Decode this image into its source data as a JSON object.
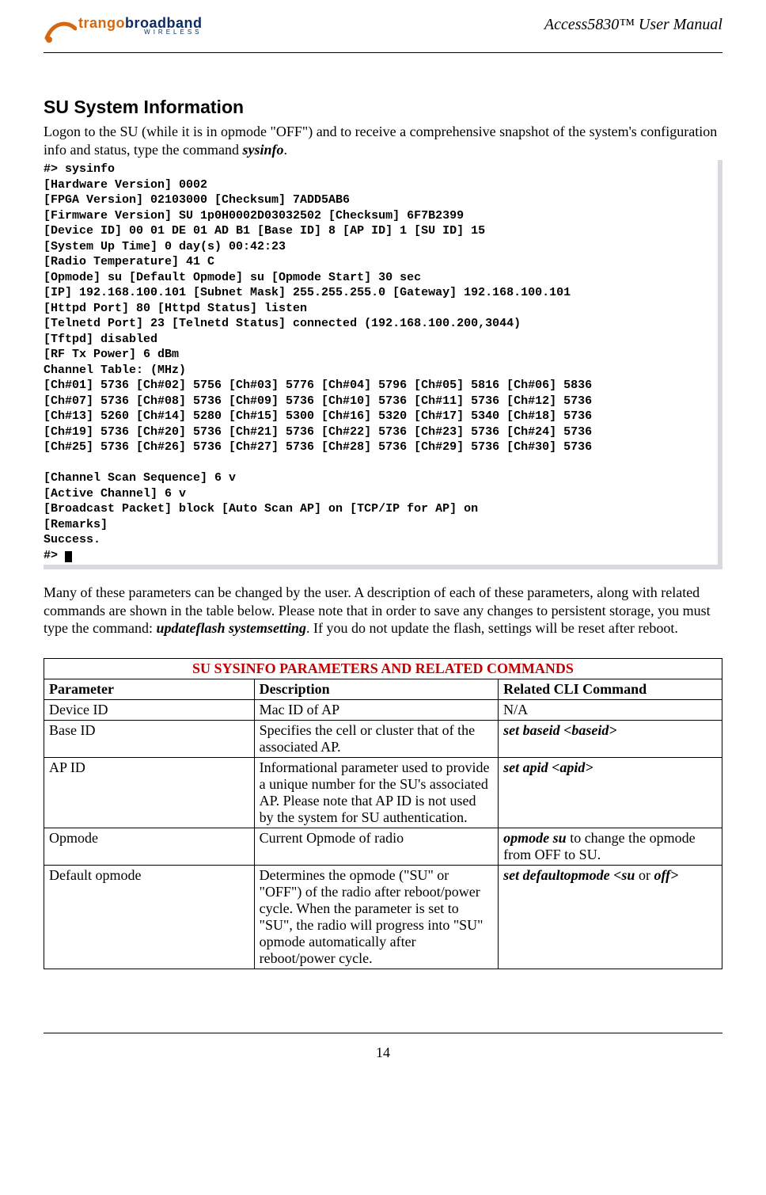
{
  "header": {
    "logo_trango": "trango",
    "logo_broadband": "broadband",
    "logo_sub": "WIRELESS",
    "doc_title": "Access5830™ User Manual"
  },
  "section": {
    "title": "SU System Information",
    "intro_a": "Logon to the SU (while it is in opmode \"OFF\")  and to receive a comprehensive snapshot of the system's configuration info and status, type the command ",
    "intro_cmd": "sysinfo",
    "intro_b": "."
  },
  "terminal_lines": [
    "#> sysinfo",
    "[Hardware Version] 0002",
    "[FPGA Version] 02103000 [Checksum] 7ADD5AB6",
    "[Firmware Version] SU 1p0H0002D03032502 [Checksum] 6F7B2399",
    "[Device ID] 00 01 DE 01 AD B1 [Base ID] 8 [AP ID] 1 [SU ID] 15",
    "[System Up Time] 0 day(s) 00:42:23",
    "[Radio Temperature] 41 C",
    "[Opmode] su [Default Opmode] su [Opmode Start] 30 sec",
    "[IP] 192.168.100.101 [Subnet Mask] 255.255.255.0 [Gateway] 192.168.100.101",
    "[Httpd Port] 80 [Httpd Status] listen",
    "[Telnetd Port] 23 [Telnetd Status] connected (192.168.100.200,3044)",
    "[Tftpd] disabled",
    "[RF Tx Power] 6 dBm",
    "Channel Table: (MHz)",
    "[Ch#01] 5736 [Ch#02] 5756 [Ch#03] 5776 [Ch#04] 5796 [Ch#05] 5816 [Ch#06] 5836",
    "[Ch#07] 5736 [Ch#08] 5736 [Ch#09] 5736 [Ch#10] 5736 [Ch#11] 5736 [Ch#12] 5736",
    "[Ch#13] 5260 [Ch#14] 5280 [Ch#15] 5300 [Ch#16] 5320 [Ch#17] 5340 [Ch#18] 5736",
    "[Ch#19] 5736 [Ch#20] 5736 [Ch#21] 5736 [Ch#22] 5736 [Ch#23] 5736 [Ch#24] 5736",
    "[Ch#25] 5736 [Ch#26] 5736 [Ch#27] 5736 [Ch#28] 5736 [Ch#29] 5736 [Ch#30] 5736",
    "",
    "[Channel Scan Sequence] 6 v",
    "[Active Channel] 6 v",
    "[Broadcast Packet] block [Auto Scan AP] on [TCP/IP for AP] on",
    "[Remarks]",
    "Success."
  ],
  "terminal_prompt": "#> ",
  "mid_para_a": "Many of these parameters can be changed by the user.  A description of each of these parameters, along with related commands are shown in the table below.  Please note that in order to save any changes to persistent storage, you must type the command:  ",
  "mid_cmd": "updateflash systemsetting",
  "mid_para_b": ".  If you do not update the flash, settings will be reset after reboot.",
  "table": {
    "title": "SU SYSINFO PARAMETERS AND RELATED COMMANDS",
    "col_widths": [
      "31%",
      "36%",
      "33%"
    ],
    "headers": [
      "Parameter",
      "Description",
      "Related CLI Command"
    ],
    "rows": [
      {
        "param": "Device ID",
        "desc": "Mac ID of AP",
        "cmd_plain": "N/A"
      },
      {
        "param": "Base ID",
        "desc": "Specifies the cell or cluster that of the associated AP.",
        "cmd_em": "set baseid <baseid>"
      },
      {
        "param": "AP ID",
        "desc": "Informational parameter  used to provide a unique number for the SU's associated AP.  Please note that AP ID is not used by the system for SU authentication.",
        "cmd_em": "set apid <apid>"
      },
      {
        "param": "Opmode",
        "desc": "Current Opmode of radio",
        "cmd_em": "opmode su",
        "cmd_tail": " to change the opmode from OFF to SU."
      },
      {
        "param": "Default opmode",
        "desc": "Determines the opmode (\"SU\" or \"OFF\") of the radio after reboot/power cycle.  When the parameter is set to \"SU\", the radio will progress into \"SU\" opmode automatically after reboot/power cycle.",
        "cmd_em": "set defaultopmode <su",
        "cmd_mid_plain": " or ",
        "cmd_em2": "off>"
      }
    ]
  },
  "footer": {
    "page_number": "14"
  },
  "colors": {
    "title_red": "#c00000",
    "logo_orange": "#d6670e",
    "logo_blue": "#0b2b62"
  }
}
